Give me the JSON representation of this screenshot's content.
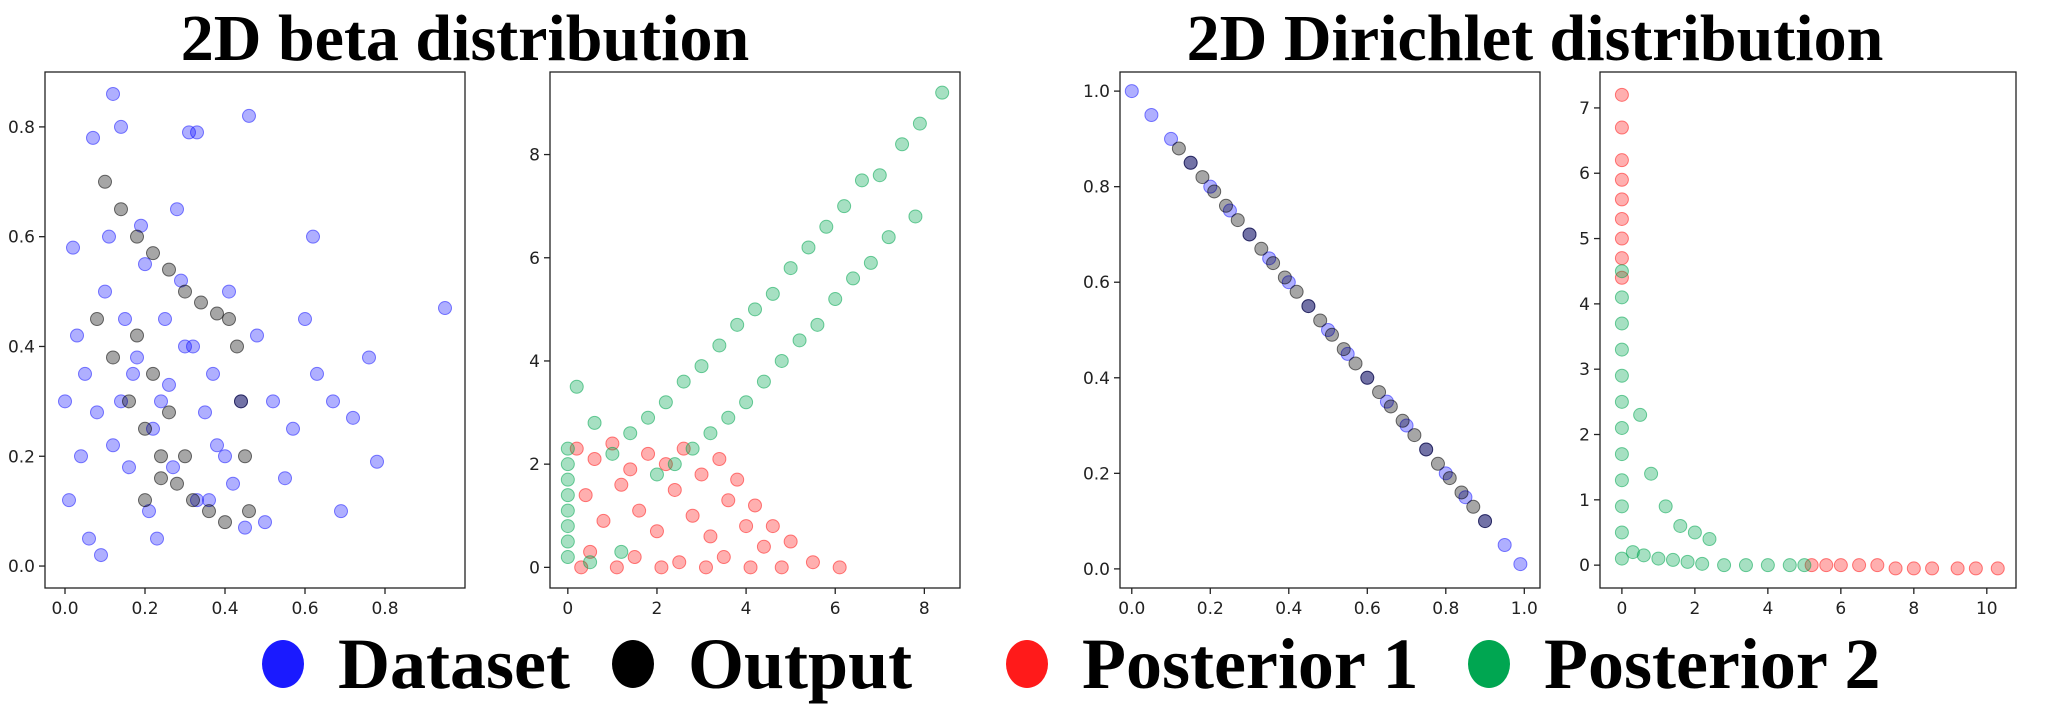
{
  "titles": {
    "beta": "2D beta distribution",
    "dirichlet": "2D Dirichlet distribution"
  },
  "legend": [
    {
      "label": "Dataset",
      "color": "#1a1aff"
    },
    {
      "label": "Output",
      "color": "#000000"
    },
    {
      "label": "Posterior 1",
      "color": "#ff1a1a"
    },
    {
      "label": "Posterior 2",
      "color": "#00a651"
    }
  ],
  "chart_data": [
    {
      "type": "scatter",
      "title": "",
      "xlim": [
        -0.05,
        1.0
      ],
      "ylim": [
        -0.04,
        0.9
      ],
      "xticks": [
        0.0,
        0.2,
        0.4,
        0.6,
        0.8
      ],
      "yticks": [
        0.0,
        0.2,
        0.4,
        0.6,
        0.8
      ],
      "tick_labels_x": [
        "0.0",
        "0.2",
        "0.4",
        "0.6",
        "0.8"
      ],
      "tick_labels_y": [
        "0.0",
        "0.2",
        "0.4",
        "0.6",
        "0.8"
      ],
      "series": [
        {
          "name": "Dataset",
          "color": "#1a1aff",
          "x": [
            0.12,
            0.14,
            0.31,
            0.33,
            0.46,
            0.07,
            0.95,
            0.02,
            0.05,
            0.62,
            0.6,
            0.76,
            0.78,
            0.72,
            0.67,
            0.55,
            0.5,
            0.48,
            0.4,
            0.36,
            0.28,
            0.2,
            0.1,
            0.03,
            0.0,
            0.01,
            0.06,
            0.09,
            0.16,
            0.22,
            0.26,
            0.3,
            0.35,
            0.38,
            0.42,
            0.45,
            0.52,
            0.57,
            0.63,
            0.69,
            0.15,
            0.18,
            0.24,
            0.12,
            0.08,
            0.04,
            0.27,
            0.33,
            0.21,
            0.17,
            0.11,
            0.19,
            0.25,
            0.29,
            0.14,
            0.23,
            0.32,
            0.37,
            0.41,
            0.44
          ],
          "y": [
            0.86,
            0.8,
            0.79,
            0.79,
            0.82,
            0.78,
            0.47,
            0.58,
            0.35,
            0.6,
            0.45,
            0.38,
            0.19,
            0.27,
            0.3,
            0.16,
            0.08,
            0.42,
            0.2,
            0.12,
            0.65,
            0.55,
            0.5,
            0.42,
            0.3,
            0.12,
            0.05,
            0.02,
            0.18,
            0.25,
            0.33,
            0.4,
            0.28,
            0.22,
            0.15,
            0.07,
            0.3,
            0.25,
            0.35,
            0.1,
            0.45,
            0.38,
            0.3,
            0.22,
            0.28,
            0.2,
            0.18,
            0.12,
            0.1,
            0.35,
            0.6,
            0.62,
            0.45,
            0.52,
            0.3,
            0.05,
            0.4,
            0.35,
            0.5,
            0.3
          ]
        },
        {
          "name": "Output",
          "color": "#000000",
          "x": [
            0.1,
            0.14,
            0.18,
            0.22,
            0.26,
            0.3,
            0.34,
            0.38,
            0.41,
            0.43,
            0.44,
            0.45,
            0.46,
            0.08,
            0.12,
            0.16,
            0.2,
            0.24,
            0.28,
            0.32,
            0.36,
            0.4,
            0.18,
            0.22,
            0.26,
            0.3,
            0.2,
            0.24
          ],
          "y": [
            0.7,
            0.65,
            0.6,
            0.57,
            0.54,
            0.5,
            0.48,
            0.46,
            0.45,
            0.4,
            0.3,
            0.2,
            0.1,
            0.45,
            0.38,
            0.3,
            0.25,
            0.2,
            0.15,
            0.12,
            0.1,
            0.08,
            0.42,
            0.35,
            0.28,
            0.2,
            0.12,
            0.16
          ]
        }
      ]
    },
    {
      "type": "scatter",
      "title": "",
      "xlim": [
        -0.4,
        8.8
      ],
      "ylim": [
        -0.4,
        9.6
      ],
      "xticks": [
        0,
        2,
        4,
        6,
        8
      ],
      "yticks": [
        0,
        2,
        4,
        6,
        8
      ],
      "tick_labels_x": [
        "0",
        "2",
        "4",
        "6",
        "8"
      ],
      "tick_labels_y": [
        "0",
        "2",
        "4",
        "6",
        "8"
      ],
      "series": [
        {
          "name": "Posterior 1",
          "color": "#ff1a1a",
          "x": [
            0.2,
            0.6,
            1.0,
            1.4,
            1.8,
            2.2,
            2.6,
            3.0,
            3.4,
            3.8,
            4.2,
            4.6,
            5.0,
            5.5,
            6.1,
            0.4,
            0.8,
            1.2,
            1.6,
            2.0,
            2.4,
            2.8,
            3.2,
            3.6,
            4.0,
            4.4,
            0.5,
            1.5,
            2.5,
            3.5,
            0.3,
            1.1,
            2.1,
            3.1,
            4.1,
            4.8
          ],
          "y": [
            2.3,
            2.1,
            2.4,
            1.9,
            2.2,
            2.0,
            2.3,
            1.8,
            2.1,
            1.7,
            1.2,
            0.8,
            0.5,
            0.1,
            0.0,
            1.4,
            0.9,
            1.6,
            1.1,
            0.7,
            1.5,
            1.0,
            0.6,
            1.3,
            0.8,
            0.4,
            0.3,
            0.2,
            0.1,
            0.2,
            0.0,
            0.0,
            0.0,
            0.0,
            0.0,
            0.0
          ]
        },
        {
          "name": "Posterior 2",
          "color": "#00a651",
          "x": [
            8.4,
            7.9,
            7.5,
            7.0,
            6.6,
            6.2,
            5.8,
            5.4,
            5.0,
            4.6,
            4.2,
            3.8,
            3.4,
            3.0,
            2.6,
            2.2,
            1.8,
            1.4,
            1.0,
            0.6,
            0.2,
            7.8,
            7.2,
            6.8,
            6.4,
            6.0,
            5.6,
            5.2,
            4.8,
            4.4,
            4.0,
            3.6,
            3.2,
            2.8,
            2.4,
            2.0,
            0.0,
            0.0,
            0.0,
            0.0,
            0.0,
            0.0,
            0.0,
            0.0,
            0.5,
            1.2
          ],
          "y": [
            9.2,
            8.6,
            8.2,
            7.6,
            7.5,
            7.0,
            6.6,
            6.2,
            5.8,
            5.3,
            5.0,
            4.7,
            4.3,
            3.9,
            3.6,
            3.2,
            2.9,
            2.6,
            2.2,
            2.8,
            3.5,
            6.8,
            6.4,
            5.9,
            5.6,
            5.2,
            4.7,
            4.4,
            4.0,
            3.6,
            3.2,
            2.9,
            2.6,
            2.3,
            2.0,
            1.8,
            0.2,
            0.5,
            0.8,
            1.1,
            1.4,
            1.7,
            2.0,
            2.3,
            0.1,
            0.3
          ]
        }
      ]
    },
    {
      "type": "scatter",
      "title": "",
      "xlim": [
        -0.03,
        1.04
      ],
      "ylim": [
        -0.04,
        1.04
      ],
      "xticks": [
        0.0,
        0.2,
        0.4,
        0.6,
        0.8,
        1.0
      ],
      "yticks": [
        0.0,
        0.2,
        0.4,
        0.6,
        0.8,
        1.0
      ],
      "tick_labels_x": [
        "0.0",
        "0.2",
        "0.4",
        "0.6",
        "0.8",
        "1.0"
      ],
      "tick_labels_y": [
        "0.0",
        "0.2",
        "0.4",
        "0.6",
        "0.8",
        "1.0"
      ],
      "series": [
        {
          "name": "Dataset",
          "color": "#1a1aff",
          "x": [
            0.0,
            0.05,
            0.1,
            0.15,
            0.2,
            0.25,
            0.3,
            0.35,
            0.4,
            0.45,
            0.5,
            0.55,
            0.6,
            0.65,
            0.7,
            0.75,
            0.8,
            0.85,
            0.9,
            0.95,
            0.99
          ],
          "y": [
            1.0,
            0.95,
            0.9,
            0.85,
            0.8,
            0.75,
            0.7,
            0.65,
            0.6,
            0.55,
            0.5,
            0.45,
            0.4,
            0.35,
            0.3,
            0.25,
            0.2,
            0.15,
            0.1,
            0.05,
            0.01
          ]
        },
        {
          "name": "Output",
          "color": "#000000",
          "x": [
            0.12,
            0.15,
            0.18,
            0.21,
            0.24,
            0.27,
            0.3,
            0.33,
            0.36,
            0.39,
            0.42,
            0.45,
            0.48,
            0.51,
            0.54,
            0.57,
            0.6,
            0.63,
            0.66,
            0.69,
            0.72,
            0.75,
            0.78,
            0.81,
            0.84,
            0.87,
            0.9
          ],
          "y": [
            0.88,
            0.85,
            0.82,
            0.79,
            0.76,
            0.73,
            0.7,
            0.67,
            0.64,
            0.61,
            0.58,
            0.55,
            0.52,
            0.49,
            0.46,
            0.43,
            0.4,
            0.37,
            0.34,
            0.31,
            0.28,
            0.25,
            0.22,
            0.19,
            0.16,
            0.13,
            0.1
          ]
        }
      ]
    },
    {
      "type": "scatter",
      "title": "",
      "xlim": [
        -0.6,
        10.8
      ],
      "ylim": [
        -0.35,
        7.55
      ],
      "xticks": [
        0,
        2,
        4,
        6,
        8,
        10
      ],
      "yticks": [
        0,
        1,
        2,
        3,
        4,
        5,
        6,
        7
      ],
      "tick_labels_x": [
        "0",
        "2",
        "4",
        "6",
        "8",
        "10"
      ],
      "tick_labels_y": [
        "0",
        "1",
        "2",
        "3",
        "4",
        "5",
        "6",
        "7"
      ],
      "series": [
        {
          "name": "Posterior 1",
          "color": "#ff1a1a",
          "x": [
            0.0,
            0.0,
            0.0,
            0.0,
            0.0,
            0.0,
            0.0,
            0.0,
            6.0,
            6.5,
            7.0,
            7.5,
            8.0,
            8.5,
            9.2,
            9.7,
            10.3,
            5.2,
            5.6,
            0.0
          ],
          "y": [
            7.2,
            6.7,
            6.2,
            5.9,
            5.6,
            5.3,
            5.0,
            4.7,
            0.0,
            0.0,
            0.0,
            -0.05,
            -0.05,
            -0.05,
            -0.05,
            -0.05,
            -0.05,
            0.0,
            0.0,
            4.4
          ]
        },
        {
          "name": "Posterior 2",
          "color": "#00a651",
          "x": [
            0.0,
            0.0,
            0.0,
            0.0,
            0.0,
            0.0,
            0.0,
            0.0,
            0.0,
            0.0,
            0.0,
            0.0,
            0.5,
            0.8,
            1.2,
            1.6,
            2.0,
            2.4,
            0.3,
            0.6,
            1.0,
            1.4,
            1.8,
            2.2,
            2.8,
            3.4,
            4.0,
            4.6,
            5.0
          ],
          "y": [
            4.5,
            4.1,
            3.7,
            3.3,
            2.9,
            2.5,
            2.1,
            1.7,
            1.3,
            0.9,
            0.5,
            0.1,
            2.3,
            1.4,
            0.9,
            0.6,
            0.5,
            0.4,
            0.2,
            0.15,
            0.1,
            0.08,
            0.05,
            0.02,
            0.0,
            0.0,
            0.0,
            0.0,
            0.0
          ]
        }
      ]
    }
  ]
}
